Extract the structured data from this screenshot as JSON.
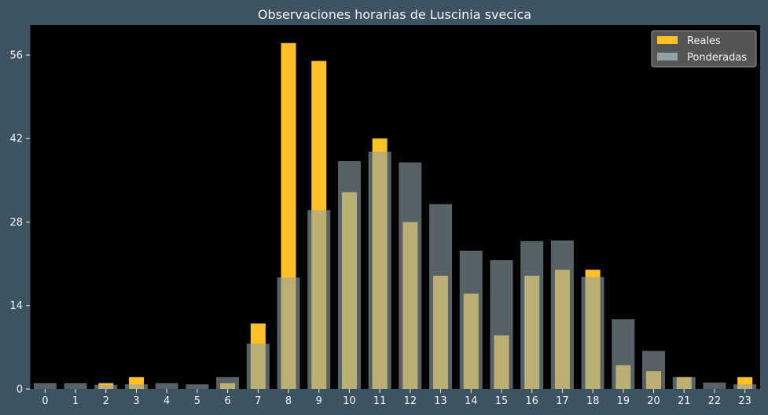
{
  "chart_data": {
    "type": "bar",
    "title": "Observaciones horarias de Luscinia svecica",
    "xlabel": "",
    "ylabel": "",
    "categories": [
      "0",
      "1",
      "2",
      "3",
      "4",
      "5",
      "6",
      "7",
      "8",
      "9",
      "10",
      "11",
      "12",
      "13",
      "14",
      "15",
      "16",
      "17",
      "18",
      "19",
      "20",
      "21",
      "22",
      "23"
    ],
    "series": [
      {
        "name": "Reales",
        "color": "#ffc125",
        "values": [
          0,
          0,
          1,
          2,
          0,
          0,
          1,
          11,
          58,
          55,
          33,
          42,
          28,
          19,
          16,
          9,
          19,
          20,
          20,
          4,
          3,
          2,
          0,
          2
        ]
      },
      {
        "name": "Ponderadas",
        "color": "#8fa3a8",
        "values": [
          1,
          1,
          0.7,
          0.8,
          1,
          0.8,
          2,
          7.6,
          18.7,
          30,
          38.2,
          39.8,
          38,
          31,
          23.2,
          21.6,
          24.8,
          24.9,
          18.8,
          11.7,
          6.4,
          2,
          1.1,
          0.8
        ]
      }
    ],
    "yticks": [
      0,
      14,
      28,
      42,
      56
    ],
    "ylim": [
      0,
      61
    ],
    "grid": false,
    "legend": "top-right",
    "plot_background": "#000000",
    "figure_background": "#3d5361"
  }
}
